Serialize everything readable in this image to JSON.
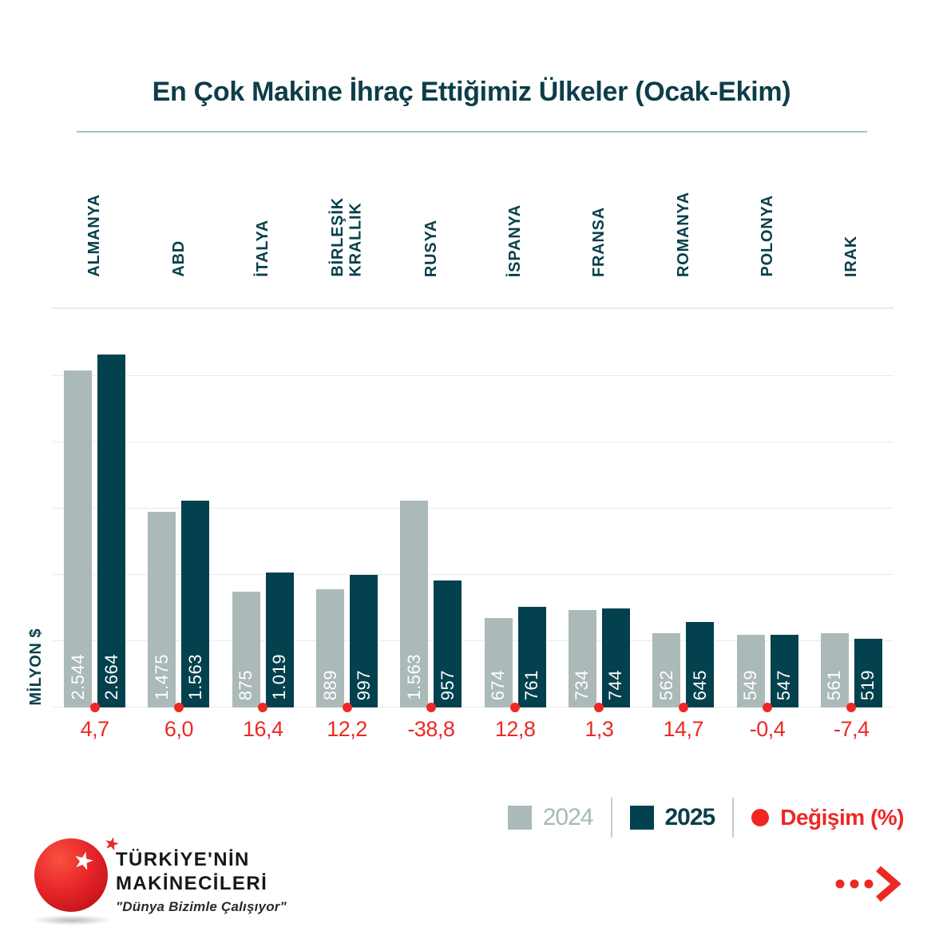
{
  "title": "En Çok Makine İhraç Ettiğimiz Ülkeler (Ocak-Ekim)",
  "y_axis_label": "MİLYON $",
  "chart_data": {
    "type": "bar",
    "title": "En Çok Makine İhraç Ettiğimiz Ülkeler (Ocak-Ekim)",
    "ylabel": "MİLYON $",
    "categories": [
      "ALMANYA",
      "ABD",
      "İTALYA",
      "BİRLEŞİK\nKRALLIK",
      "RUSYA",
      "İSPANYA",
      "FRANSA",
      "ROMANYA",
      "POLONYA",
      "IRAK"
    ],
    "series": [
      {
        "name": "2024",
        "values": [
          2544,
          1475,
          875,
          889,
          1563,
          674,
          734,
          562,
          549,
          561
        ],
        "display": [
          "2.544",
          "1.475",
          "875",
          "889",
          "1.563",
          "674",
          "734",
          "562",
          "549",
          "561"
        ]
      },
      {
        "name": "2025",
        "values": [
          2664,
          1563,
          1019,
          997,
          957,
          761,
          744,
          645,
          547,
          519
        ],
        "display": [
          "2.664",
          "1.563",
          "1.019",
          "997",
          "957",
          "761",
          "744",
          "645",
          "547",
          "519"
        ]
      }
    ],
    "change_pct": {
      "name": "Değişim (%)",
      "values": [
        4.7,
        6.0,
        16.4,
        12.2,
        -38.8,
        12.8,
        1.3,
        14.7,
        -0.4,
        -7.4
      ],
      "display": [
        "4,7",
        "6,0",
        "16,4",
        "12,2",
        "-38,8",
        "12,8",
        "1,3",
        "14,7",
        "-0,4",
        "-7,4"
      ]
    },
    "ylim": [
      0,
      2740
    ],
    "gridline_step": 500,
    "grid": true,
    "legend_position": "bottom-right"
  },
  "legend": {
    "items": [
      {
        "label": "2024",
        "swatch": "gray-square"
      },
      {
        "label": "2025",
        "swatch": "teal-square"
      },
      {
        "label": "Değişim (%)",
        "swatch": "red-dot"
      }
    ]
  },
  "logo": {
    "name_line1": "TÜRKİYE'NİN",
    "name_line2": "MAKİNECİLERİ",
    "tagline": "\"Dünya Bizimle Çalışıyor\""
  },
  "icons": {
    "change_marker": "change-dot",
    "logo_star_white": "star-icon",
    "logo_star_red": "star-icon",
    "more": "more-arrow-icon"
  },
  "colors": {
    "teal_dark": "#02414d",
    "gray_bar": "#abb9b9",
    "red_accent": "#ed2824",
    "grid": "#e9eaea",
    "title_text": "#0d3d49"
  }
}
